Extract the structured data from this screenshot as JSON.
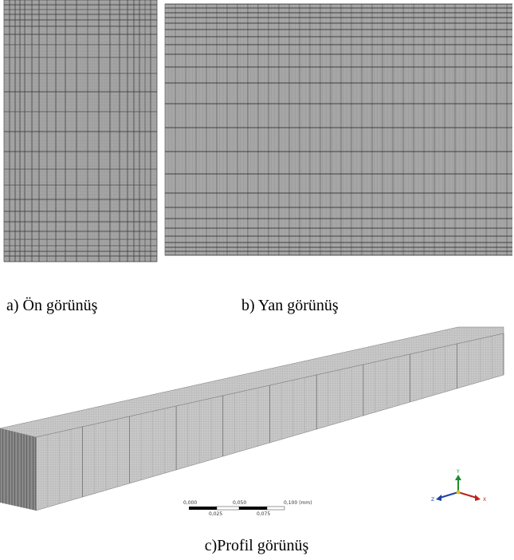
{
  "panels": [
    {
      "caption": "a) Ön görünüş"
    },
    {
      "caption": "b) Yan görünüş"
    },
    {
      "caption": "c)Profil görünüş"
    }
  ],
  "scale_bar": {
    "labels": [
      "0,000",
      "0,025",
      "0,050",
      "0,075",
      "0,100 (mm)"
    ]
  },
  "axes": {
    "labels": [
      "Y",
      "X",
      "Z"
    ]
  }
}
